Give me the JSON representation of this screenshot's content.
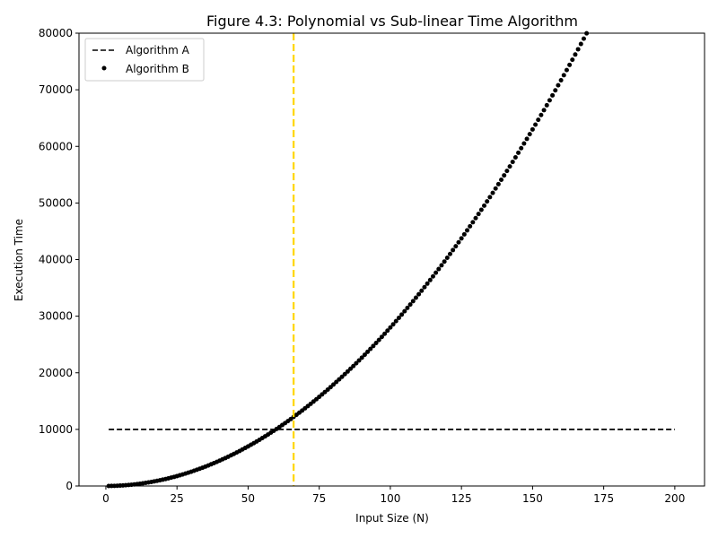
{
  "chart_data": {
    "type": "line",
    "title": "Figure 4.3: Polynomial vs Sub-linear Time Algorithm",
    "xlabel": "Input Size (N)",
    "ylabel": "Execution Time",
    "xlim": [
      -9.45,
      210.45
    ],
    "ylim": [
      0,
      80000
    ],
    "xticks": [
      0,
      25,
      50,
      75,
      100,
      125,
      150,
      175,
      200
    ],
    "yticks": [
      0,
      10000,
      20000,
      30000,
      40000,
      50000,
      60000,
      70000,
      80000
    ],
    "grid": false,
    "legend_position": "top-left",
    "series": [
      {
        "name": "Algorithm A",
        "style": "dashed-line",
        "color": "#000000",
        "formula": "y = 10000",
        "x_range": [
          1,
          200
        ],
        "y_constant": 10000
      },
      {
        "name": "Algorithm B",
        "style": "dots",
        "color": "#000000",
        "formula": "y = 2.8 * x^2",
        "x_range": [
          1,
          169
        ],
        "coefficient": 2.8
      }
    ],
    "annotations": [
      {
        "type": "vertical-line",
        "x": 66,
        "color": "#FFD700",
        "style": "dashed"
      }
    ]
  }
}
